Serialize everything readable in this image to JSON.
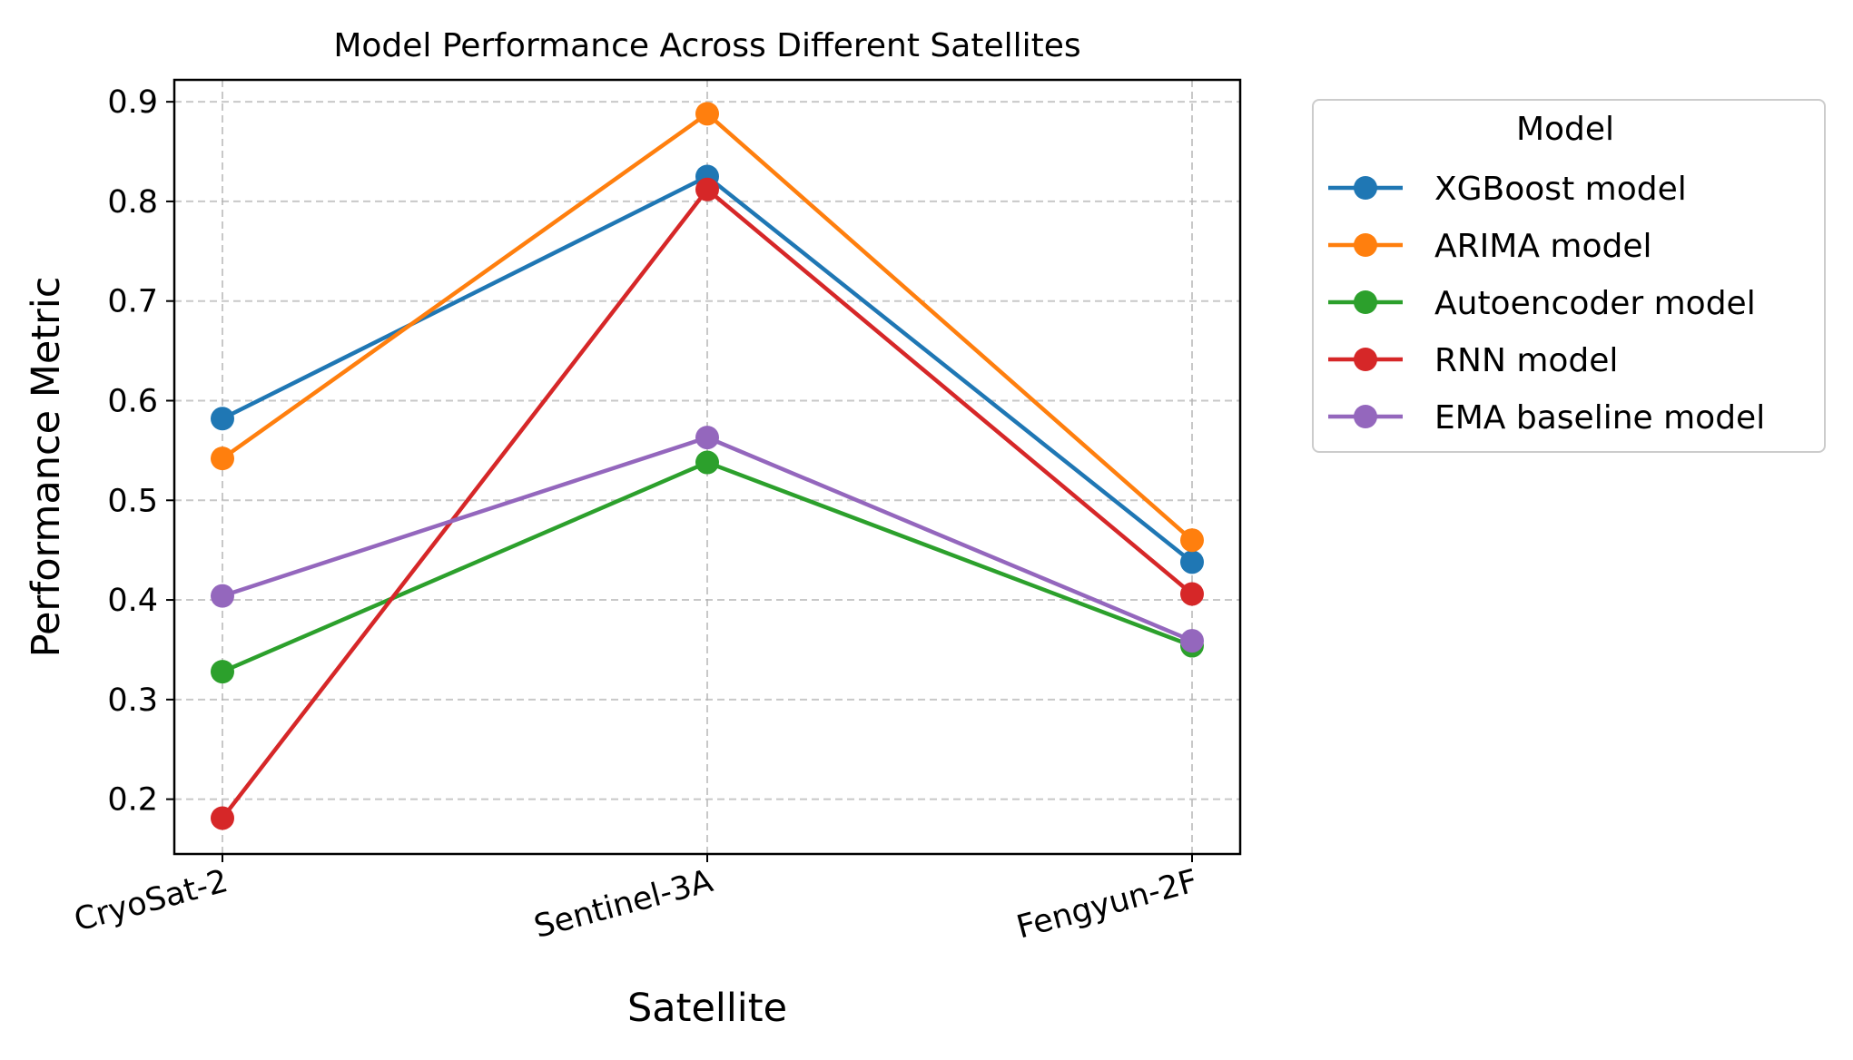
{
  "chart_data": {
    "type": "line",
    "title": "Model Performance Across Different Satellites",
    "xlabel": "Satellite",
    "ylabel": "Performance Metric",
    "categories": [
      "CryoSat-2",
      "Sentinel-3A",
      "Fengyun-2F"
    ],
    "ylim": [
      0.145,
      0.922
    ],
    "yticks": [
      0.2,
      0.3,
      0.4,
      0.5,
      0.6,
      0.7,
      0.8,
      0.9
    ],
    "ytick_labels": [
      "0.2",
      "0.3",
      "0.4",
      "0.5",
      "0.6",
      "0.7",
      "0.8",
      "0.9"
    ],
    "grid": true,
    "legend_title": "Model",
    "legend_position": "outside-right-top",
    "series": [
      {
        "name": "XGBoost model",
        "color": "#1f77b4",
        "values": [
          0.582,
          0.825,
          0.438
        ]
      },
      {
        "name": "ARIMA model",
        "color": "#ff7f0e",
        "values": [
          0.542,
          0.888,
          0.46
        ]
      },
      {
        "name": "Autoencoder model",
        "color": "#2ca02c",
        "values": [
          0.328,
          0.538,
          0.354
        ]
      },
      {
        "name": "RNN model",
        "color": "#d62728",
        "values": [
          0.181,
          0.812,
          0.406
        ]
      },
      {
        "name": "EMA baseline model",
        "color": "#9467bd",
        "values": [
          0.404,
          0.563,
          0.359
        ]
      }
    ]
  }
}
